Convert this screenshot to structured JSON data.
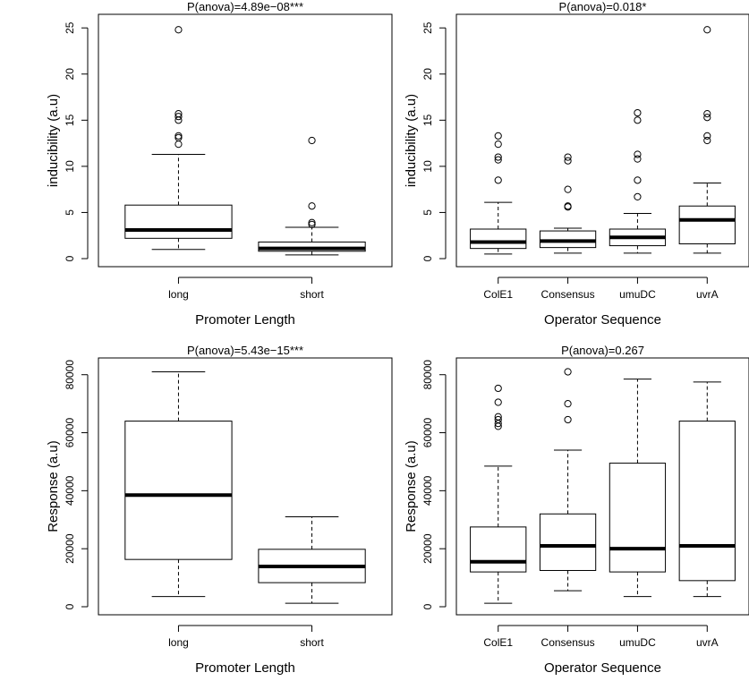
{
  "chart_data": [
    {
      "type": "boxplot",
      "title": "P(anova)=4.89e−08***",
      "xlabel": "Promoter Length",
      "ylabel": "inducibility (a.u)",
      "ylim": [
        0,
        25.6
      ],
      "yticks": [
        0,
        5,
        10,
        15,
        20,
        25
      ],
      "yticklabels": [
        "0",
        "5",
        "10",
        "15",
        "20",
        "25"
      ],
      "categories": [
        "long",
        "short"
      ],
      "boxes": [
        {
          "min": 1.0,
          "q1": 2.2,
          "median": 3.1,
          "q3": 5.8,
          "max": 11.3,
          "outliers": [
            12.4,
            13.1,
            13.3,
            15.0,
            15.4,
            15.7,
            24.8
          ]
        },
        {
          "min": 0.4,
          "q1": 0.8,
          "median": 1.1,
          "q3": 1.8,
          "max": 3.4,
          "outliers": [
            3.7,
            3.9,
            5.7,
            12.8
          ]
        }
      ]
    },
    {
      "type": "boxplot",
      "title": "P(anova)=0.018*",
      "xlabel": "Operator Sequence",
      "ylabel": "inducibility (a.u)",
      "ylim": [
        0,
        25.6
      ],
      "yticks": [
        0,
        5,
        10,
        15,
        20,
        25
      ],
      "yticklabels": [
        "0",
        "5",
        "10",
        "15",
        "20",
        "25"
      ],
      "categories": [
        "ColE1",
        "Consensus",
        "umuDC",
        "uvrA"
      ],
      "boxes": [
        {
          "min": 0.5,
          "q1": 1.1,
          "median": 1.8,
          "q3": 3.2,
          "max": 6.1,
          "outliers": [
            8.5,
            10.7,
            11.0,
            12.4,
            13.3
          ]
        },
        {
          "min": 0.6,
          "q1": 1.2,
          "median": 1.9,
          "q3": 3.0,
          "max": 3.3,
          "outliers": [
            5.6,
            5.7,
            7.5,
            10.6,
            11.0
          ]
        },
        {
          "min": 0.6,
          "q1": 1.4,
          "median": 2.3,
          "q3": 3.2,
          "max": 4.9,
          "outliers": [
            6.7,
            8.5,
            10.8,
            11.3,
            15.0,
            15.8
          ]
        },
        {
          "min": 0.6,
          "q1": 1.6,
          "median": 4.2,
          "q3": 5.7,
          "max": 8.2,
          "outliers": [
            12.8,
            13.3,
            15.3,
            15.7,
            24.8
          ]
        }
      ]
    },
    {
      "type": "boxplot",
      "title": "P(anova)=5.43e−15***",
      "xlabel": "Promoter Length",
      "ylabel": "Response (a.u)",
      "ylim": [
        0,
        83000
      ],
      "yticks": [
        0,
        20000,
        40000,
        60000,
        80000
      ],
      "yticklabels": [
        "0",
        "20000",
        "40000",
        "60000",
        "80000"
      ],
      "categories": [
        "long",
        "short"
      ],
      "boxes": [
        {
          "min": 3500,
          "q1": 16300,
          "median": 38500,
          "q3": 64000,
          "max": 81000,
          "outliers": []
        },
        {
          "min": 1200,
          "q1": 8300,
          "median": 13900,
          "q3": 19800,
          "max": 31000,
          "outliers": []
        }
      ]
    },
    {
      "type": "boxplot",
      "title": "P(anova)=0.267",
      "xlabel": "Operator Sequence",
      "ylabel": "Response (a.u)",
      "ylim": [
        0,
        83000
      ],
      "yticks": [
        0,
        20000,
        40000,
        60000,
        80000
      ],
      "yticklabels": [
        "0",
        "20000",
        "40000",
        "60000",
        "80000"
      ],
      "categories": [
        "ColE1",
        "Consensus",
        "umuDC",
        "uvrA"
      ],
      "boxes": [
        {
          "min": 1200,
          "q1": 12000,
          "median": 15500,
          "q3": 27500,
          "max": 48500,
          "outliers": [
            62200,
            63200,
            64500,
            65500,
            70500,
            75300
          ]
        },
        {
          "min": 5500,
          "q1": 12500,
          "median": 21000,
          "q3": 32000,
          "max": 54000,
          "outliers": [
            64500,
            70000,
            81000
          ]
        },
        {
          "min": 3500,
          "q1": 12000,
          "median": 20000,
          "q3": 49500,
          "max": 78500,
          "outliers": []
        },
        {
          "min": 3500,
          "q1": 9000,
          "median": 21000,
          "q3": 64000,
          "max": 77500,
          "outliers": []
        }
      ]
    }
  ]
}
